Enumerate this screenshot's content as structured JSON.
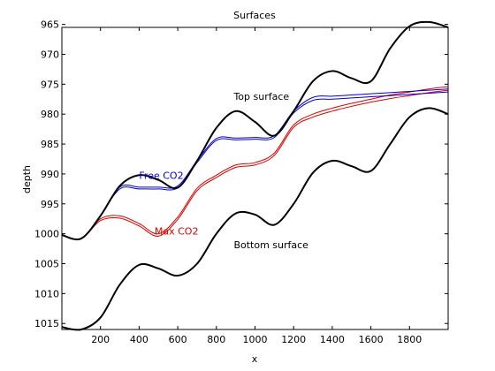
{
  "chart_data": {
    "type": "line",
    "title": "Surfaces",
    "xlabel": "x",
    "ylabel": "depth",
    "xlim": [
      0,
      2000
    ],
    "ylim": [
      965.5,
      1016
    ],
    "y_reversed": true,
    "xticks": [
      200,
      400,
      600,
      800,
      1000,
      1200,
      1400,
      1600,
      1800
    ],
    "yticks": [
      965,
      970,
      975,
      980,
      985,
      990,
      995,
      1000,
      1005,
      1010,
      1015
    ],
    "grid": false,
    "colors": {
      "surfaces": "#000000",
      "free_co2": "#0000cc",
      "max_co2": "#dd0000"
    },
    "annotations": [
      {
        "text": "Top surface",
        "x": 890,
        "y": 977.6,
        "color": "#000000"
      },
      {
        "text": "Free CO2",
        "x": 400,
        "y": 990.8,
        "color": "#0000cc"
      },
      {
        "text": "Max CO2",
        "x": 480,
        "y": 1000.1,
        "color": "#dd0000"
      },
      {
        "text": "Bottom surface",
        "x": 890,
        "y": 1002.4,
        "color": "#000000"
      }
    ],
    "series": [
      {
        "id": "top_surface",
        "x": [
          0,
          100,
          200,
          300,
          400,
          500,
          600,
          700,
          800,
          900,
          1000,
          1100,
          1200,
          1300,
          1400,
          1500,
          1600,
          1700,
          1800,
          1900,
          2000
        ],
        "y": [
          1000.2,
          1000.8,
          997.0,
          992.0,
          990.2,
          991.0,
          992.3,
          987.8,
          982.3,
          979.5,
          981.3,
          983.6,
          979.5,
          974.5,
          972.8,
          974.0,
          974.5,
          969.0,
          965.3,
          964.6,
          965.5
        ]
      },
      {
        "id": "bottom_surface",
        "x": [
          0,
          100,
          200,
          300,
          400,
          500,
          600,
          700,
          800,
          900,
          1000,
          1100,
          1200,
          1300,
          1400,
          1500,
          1600,
          1700,
          1800,
          1900,
          2000
        ],
        "y": [
          1015.6,
          1016.0,
          1014.0,
          1008.5,
          1005.2,
          1005.8,
          1007.0,
          1005.0,
          1000.0,
          996.6,
          996.8,
          998.5,
          995.0,
          989.8,
          987.8,
          988.7,
          989.5,
          985.0,
          980.5,
          979.0,
          980.0
        ]
      },
      {
        "id": "free_co2_upper",
        "x": [
          200,
          300,
          400,
          500,
          600,
          700,
          800,
          900,
          1000,
          1100,
          1200,
          1300,
          1400,
          1500,
          1600,
          1700,
          1800,
          1900,
          2000
        ],
        "y": [
          997.0,
          992.2,
          992.2,
          992.2,
          992.0,
          987.8,
          984.1,
          984.0,
          983.9,
          983.6,
          979.5,
          977.2,
          977.0,
          976.8,
          976.6,
          976.4,
          976.2,
          976.0,
          975.8
        ]
      },
      {
        "id": "free_co2_lower",
        "x": [
          200,
          300,
          400,
          500,
          600,
          700,
          800,
          900,
          1000,
          1100,
          1200,
          1300,
          1400,
          1500,
          1600,
          1700,
          1800,
          1900,
          2000
        ],
        "y": [
          997.0,
          992.5,
          992.5,
          992.5,
          992.3,
          988.1,
          984.4,
          984.3,
          984.2,
          983.9,
          979.8,
          977.7,
          977.5,
          977.3,
          977.1,
          976.9,
          976.7,
          976.5,
          976.3
        ]
      },
      {
        "id": "max_co2_upper",
        "x": [
          0,
          100,
          200,
          300,
          400,
          500,
          600,
          700,
          800,
          900,
          1000,
          1100,
          1200,
          1300,
          1400,
          1500,
          1600,
          1700,
          1800,
          1900,
          2000
        ],
        "y": [
          1000.2,
          1000.8,
          997.5,
          997.0,
          998.3,
          1000.0,
          997.2,
          992.4,
          990.2,
          988.5,
          988.1,
          986.5,
          981.8,
          980.0,
          979.0,
          978.2,
          977.5,
          976.8,
          976.3,
          975.8,
          975.4
        ]
      },
      {
        "id": "max_co2_lower",
        "x": [
          0,
          100,
          200,
          300,
          400,
          500,
          600,
          700,
          800,
          900,
          1000,
          1100,
          1200,
          1300,
          1400,
          1500,
          1600,
          1700,
          1800,
          1900,
          2000
        ],
        "y": [
          1000.2,
          1000.8,
          997.8,
          997.4,
          998.7,
          1000.4,
          997.6,
          992.8,
          990.6,
          988.9,
          988.5,
          986.9,
          982.2,
          980.5,
          979.5,
          978.7,
          978.0,
          977.4,
          976.9,
          976.4,
          976.0
        ]
      }
    ]
  }
}
